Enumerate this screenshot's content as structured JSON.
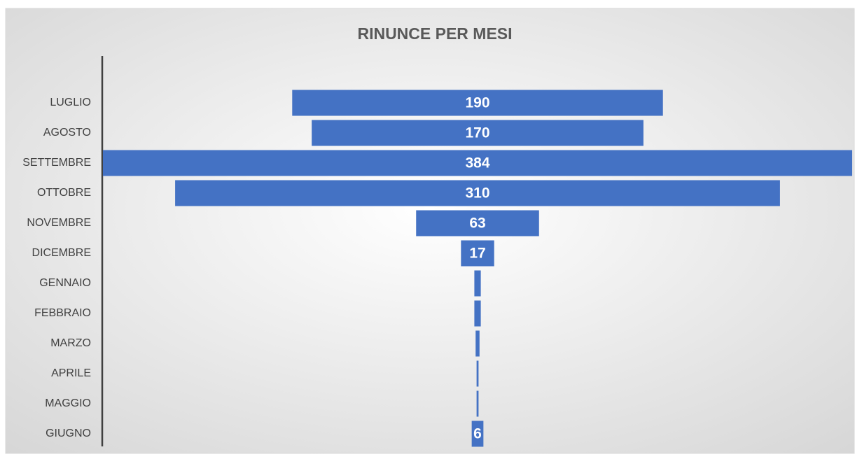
{
  "chart_data": {
    "type": "funnel",
    "title": "RINUNCE PER MESI",
    "categories": [
      "LUGLIO",
      "AGOSTO",
      "SETTEMBRE",
      "OTTOBRE",
      "NOVEMBRE",
      "DICEMBRE",
      "GENNAIO",
      "FEBBRAIO",
      "MARZO",
      "APRILE",
      "MAGGIO",
      "GIUGNO"
    ],
    "values": [
      190,
      170,
      384,
      310,
      63,
      17,
      3.3,
      3.3,
      2,
      1,
      1,
      6
    ],
    "value_labels": [
      "190",
      "170",
      "384",
      "310",
      "63",
      "17",
      null,
      null,
      null,
      null,
      null,
      "6"
    ],
    "color": "#4472c4"
  }
}
